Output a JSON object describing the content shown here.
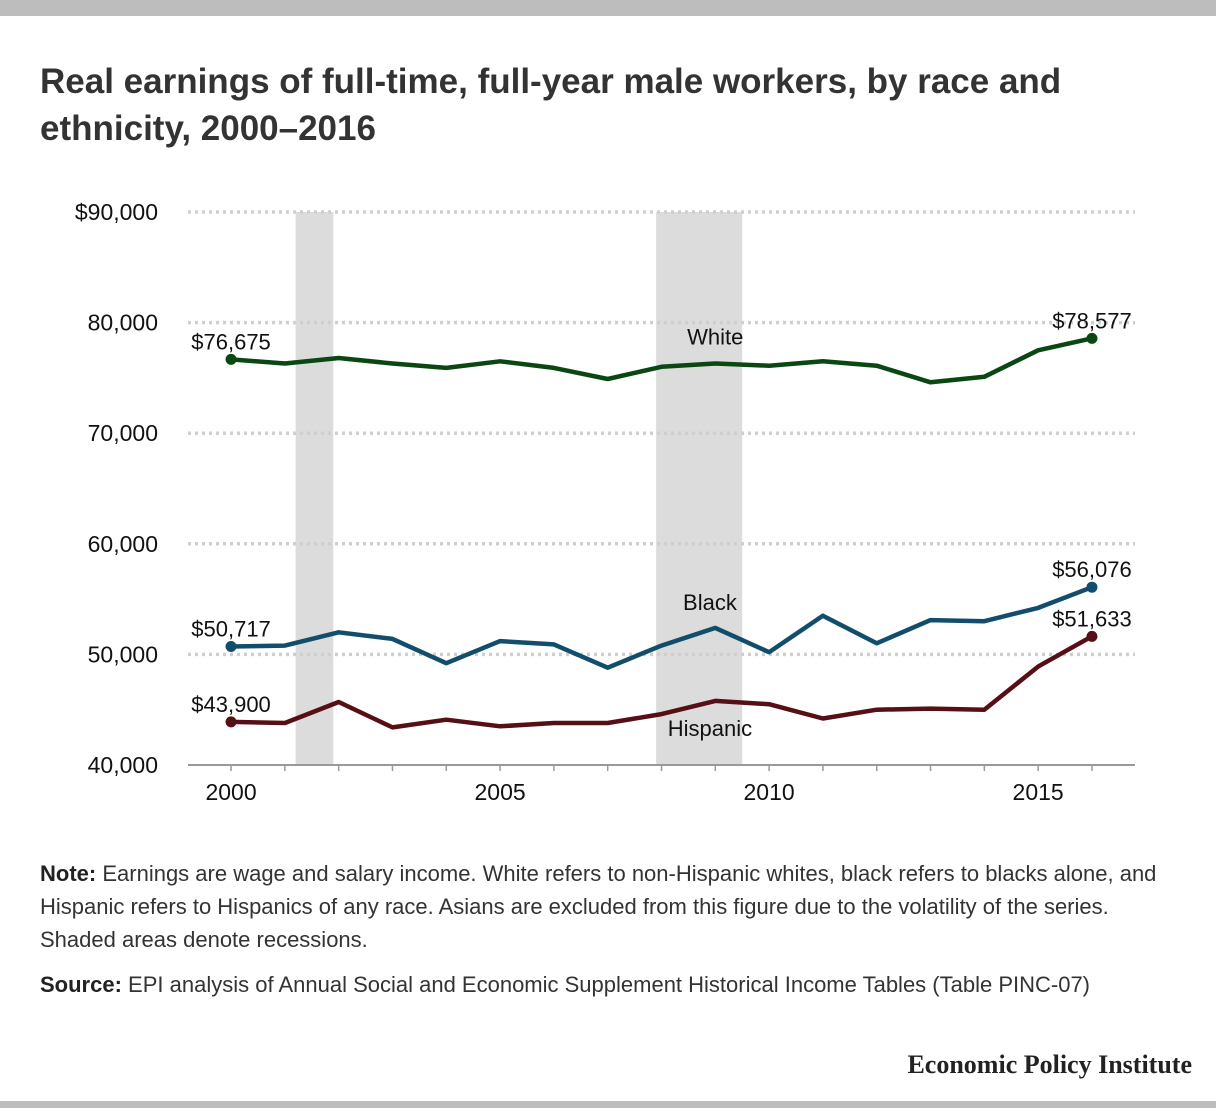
{
  "title": "Real earnings of full-time, full-year male workers, by race and ethnicity, 2000–2016",
  "note_label": "Note:",
  "note_text": "Earnings are wage and salary income. White refers to non-Hispanic whites, black refers to blacks alone, and Hispanic refers to Hispanics of any race. Asians are excluded from this figure due to the volatility of the series. Shaded areas denote recessions.",
  "source_label": "Source:",
  "source_text": "EPI analysis of Annual Social and Economic Supplement Historical Income Tables (Table PINC-07)",
  "brand": "Economic Policy Institute",
  "chart_data": {
    "type": "line",
    "title": "Real earnings of full-time, full-year male workers, by race and ethnicity, 2000–2016",
    "xlabel": "",
    "ylabel": "",
    "x": [
      2000,
      2001,
      2002,
      2003,
      2004,
      2005,
      2006,
      2007,
      2008,
      2009,
      2010,
      2011,
      2012,
      2013,
      2014,
      2015,
      2016
    ],
    "xlim": [
      1999.2,
      2016.8
    ],
    "ylim": [
      40000,
      90000
    ],
    "y_ticks": [
      {
        "value": 90000,
        "label": "$90,000"
      },
      {
        "value": 80000,
        "label": "80,000"
      },
      {
        "value": 70000,
        "label": "70,000"
      },
      {
        "value": 60000,
        "label": "60,000"
      },
      {
        "value": 50000,
        "label": "50,000"
      },
      {
        "value": 40000,
        "label": "40,000"
      }
    ],
    "x_ticks": [
      {
        "value": 2000,
        "label": "2000"
      },
      {
        "value": 2005,
        "label": "2005"
      },
      {
        "value": 2010,
        "label": "2010"
      },
      {
        "value": 2015,
        "label": "2015"
      }
    ],
    "grid": true,
    "recessions": [
      [
        2001.2,
        2001.9
      ],
      [
        2007.9,
        2009.5
      ]
    ],
    "recession_color": "#dcdcdc",
    "series": [
      {
        "name": "White",
        "color": "#0b4713",
        "values": [
          76675,
          76300,
          76800,
          76300,
          75900,
          76500,
          75900,
          74900,
          76000,
          76300,
          76100,
          76500,
          76100,
          74600,
          75100,
          77500,
          78577
        ],
        "label_x": 2009,
        "label_y": 78000,
        "start_label": "$76,675",
        "end_label": "$78,577"
      },
      {
        "name": "Black",
        "color": "#124e6c",
        "values": [
          50717,
          50800,
          52000,
          51400,
          49200,
          51200,
          50900,
          48800,
          50800,
          52400,
          50200,
          53500,
          51000,
          53100,
          53000,
          54200,
          56076
        ],
        "label_x": 2008.9,
        "label_y": 54000,
        "start_label": "$50,717",
        "end_label": "$56,076"
      },
      {
        "name": "Hispanic",
        "color": "#560f14",
        "values": [
          43900,
          43800,
          45700,
          43400,
          44100,
          43500,
          43800,
          43800,
          44600,
          45800,
          45500,
          44200,
          45000,
          45100,
          45000,
          48900,
          51633
        ],
        "label_x": 2008.9,
        "label_y": 42600,
        "start_label": "$43,900",
        "end_label": "$51,633"
      }
    ]
  }
}
